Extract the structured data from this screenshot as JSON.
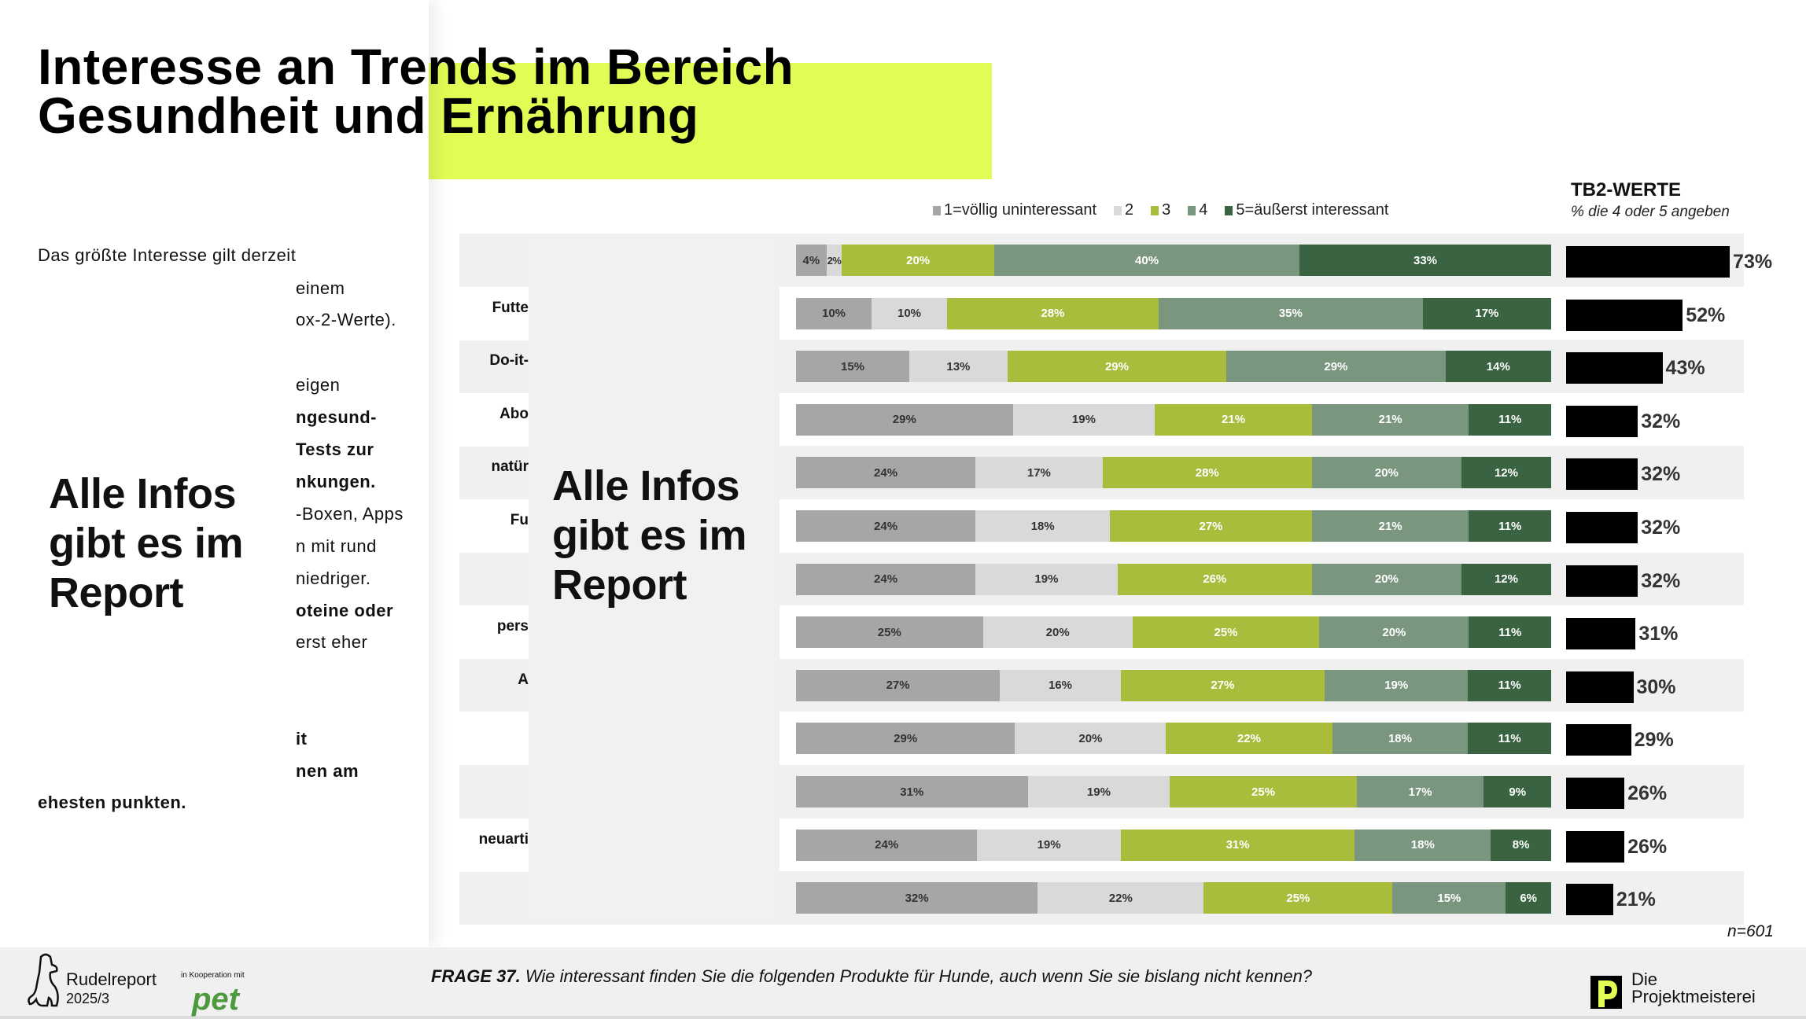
{
  "title": [
    "Interesse an Trends im Bereich",
    "Gesundheit und Ernährung"
  ],
  "left_text": {
    "intro": "Das größte Interesse gilt derzeit",
    "fragments": [
      {
        "t": "einem",
        "b": false
      },
      {
        "t": "ox-2-Werte).",
        "b": false
      },
      {
        "t": "eigen",
        "b": false
      },
      {
        "t": "ngesund-",
        "b": true
      },
      {
        "t": "Tests zur",
        "b": true
      },
      {
        "t": "nkungen.",
        "b": true
      },
      {
        "t": "-Boxen, Apps",
        "b": false
      },
      {
        "t": "n mit rund",
        "b": false
      },
      {
        "t": "niedriger.",
        "b": false
      },
      {
        "t": "oteine oder",
        "b": true
      },
      {
        "t": "erst eher",
        "b": false
      },
      {
        "t": "it",
        "b": true
      },
      {
        "t": "nen am",
        "b": true
      }
    ],
    "outro": "ehesten punkten."
  },
  "promo": {
    "left": "Alle Infos gibt es im Report",
    "center": "Alle Infos gibt es im Report"
  },
  "tb2": {
    "title": "TB2-WERTE",
    "subtitle": "% die 4 oder 5 angeben"
  },
  "n_label": "n=601",
  "question": {
    "prefix": "FRAGE 37.",
    "text": " Wie interessant finden Sie die folgenden Produkte für Hunde, auch wenn Sie sie bislang nicht kennen?"
  },
  "footer": {
    "brand": "Rudelreport",
    "edition": "2025/3",
    "coop": "in Kooperation mit",
    "partner": "pet",
    "agency": [
      "Die",
      "Projektmeisterei"
    ]
  },
  "chart_data": {
    "type": "bar",
    "orientation": "horizontal-stacked-100",
    "legend": [
      "1=völlig uninteressant",
      "2",
      "3",
      "4",
      "5=äußerst interessant"
    ],
    "colors": [
      "#a6a6a6",
      "#d9d9d9",
      "#a9bc3b",
      "#7a967f",
      "#3a6441"
    ],
    "categories": [
      "",
      "Futte",
      "Do-it-",
      "Abo",
      "natür",
      "Fu",
      "",
      "pers",
      "A",
      "",
      "",
      "neuarti",
      ""
    ],
    "series": [
      {
        "name": "1=völlig uninteressant",
        "values": [
          4,
          10,
          15,
          29,
          24,
          24,
          24,
          25,
          27,
          29,
          31,
          24,
          32
        ]
      },
      {
        "name": "2",
        "values": [
          2,
          10,
          13,
          19,
          17,
          18,
          19,
          20,
          16,
          20,
          19,
          19,
          22
        ]
      },
      {
        "name": "3",
        "values": [
          20,
          28,
          29,
          21,
          28,
          27,
          26,
          25,
          27,
          22,
          25,
          31,
          25
        ]
      },
      {
        "name": "4",
        "values": [
          40,
          35,
          29,
          21,
          20,
          21,
          20,
          20,
          19,
          18,
          17,
          18,
          15
        ]
      },
      {
        "name": "5=äußerst interessant",
        "values": [
          33,
          17,
          14,
          11,
          12,
          11,
          12,
          11,
          11,
          11,
          9,
          8,
          6
        ]
      }
    ],
    "tb2_values": [
      73,
      52,
      43,
      32,
      32,
      32,
      32,
      31,
      30,
      29,
      26,
      26,
      21
    ],
    "tb2_color": "#000000"
  }
}
